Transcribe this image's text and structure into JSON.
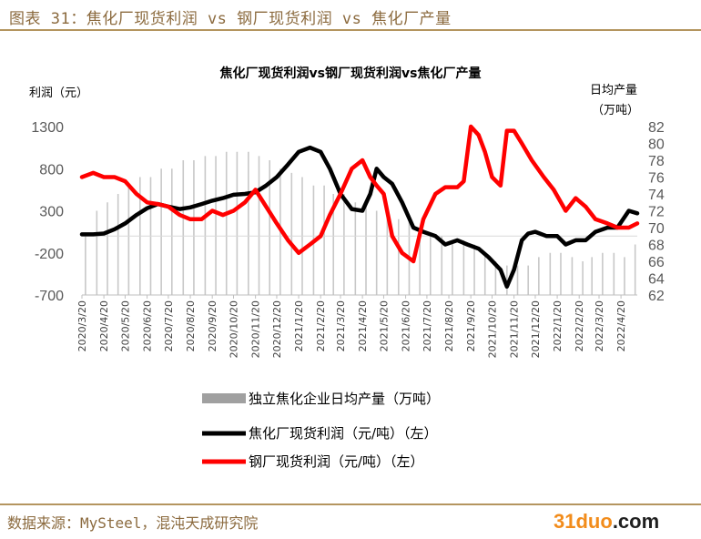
{
  "figure_caption": "图表 31：焦化厂现货利润 vs 钢厂现货利润 vs 焦化厂产量",
  "source": "数据来源：MySteel，混沌天成研究院",
  "logo": {
    "part1": "31",
    "part2": "duo",
    "part3": ".com"
  },
  "colors": {
    "coke": "#000000",
    "steel": "#ff0000",
    "bars": "#c8c8c8",
    "accent": "#b4955f"
  },
  "chart_data": {
    "type": "line",
    "title": "焦化厂现货利润vs钢厂现货利润vs焦化厂产量",
    "ylabel_left": "利润（元）",
    "ylabel_right": [
      "日均产量",
      "（万吨）"
    ],
    "ylim_left": [
      -700,
      1300
    ],
    "yticks_left": [
      "1300",
      "800",
      "300",
      "-200",
      "-700"
    ],
    "ylim_right": [
      62,
      82
    ],
    "yticks_right": [
      "82",
      "80",
      "78",
      "76",
      "74",
      "72",
      "70",
      "68",
      "66",
      "64",
      "62"
    ],
    "x_range": [
      "2020-03-20",
      "2022-05-13"
    ],
    "xticks": [
      "2020/3/20",
      "2020/4/20",
      "2020/5/20",
      "2020/6/20",
      "2020/7/20",
      "2020/8/20",
      "2020/9/20",
      "2020/10/20",
      "2020/11/20",
      "2020/12/20",
      "2021/1/20",
      "2021/2/20",
      "2021/3/20",
      "2021/4/20",
      "2021/5/20",
      "2021/6/20",
      "2021/7/20",
      "2021/8/20",
      "2021/9/20",
      "2021/10/20",
      "2021/11/20",
      "2021/12/20",
      "2022/1/20",
      "2022/2/20",
      "2022/3/20",
      "2022/4/20"
    ],
    "legend": [
      "独立焦化企业日均产量（万吨）",
      "焦化厂现货利润（元/吨）（左）",
      "钢厂现货利润（元/吨）（左）"
    ],
    "series": [
      {
        "name": "独立焦化企业日均产量（万吨）",
        "type": "bar",
        "axis": "right",
        "x": [
          "2020-03-25",
          "2020-04-10",
          "2020-04-25",
          "2020-05-10",
          "2020-05-25",
          "2020-06-10",
          "2020-06-25",
          "2020-07-10",
          "2020-07-25",
          "2020-08-10",
          "2020-08-25",
          "2020-09-10",
          "2020-09-25",
          "2020-10-10",
          "2020-10-25",
          "2020-11-10",
          "2020-11-25",
          "2020-12-10",
          "2020-12-25",
          "2021-01-10",
          "2021-01-25",
          "2021-02-10",
          "2021-02-25",
          "2021-03-10",
          "2021-03-25",
          "2021-04-10",
          "2021-04-25",
          "2021-05-10",
          "2021-05-25",
          "2021-06-10",
          "2021-06-25",
          "2021-07-10",
          "2021-07-25",
          "2021-08-10",
          "2021-08-25",
          "2021-09-10",
          "2021-09-25",
          "2021-10-10",
          "2021-10-25",
          "2021-11-10",
          "2021-11-25",
          "2021-12-10",
          "2021-12-25",
          "2022-01-10",
          "2022-01-25",
          "2022-02-10",
          "2022-02-25",
          "2022-03-10",
          "2022-03-25",
          "2022-04-10",
          "2022-04-25",
          "2022-05-10"
        ],
        "values": [
          69,
          72,
          73,
          74,
          75,
          76,
          76,
          77,
          77,
          78,
          78,
          78.5,
          78.5,
          79,
          79,
          79,
          78.5,
          78,
          77,
          76.5,
          76,
          75,
          75,
          74,
          74,
          73,
          73,
          72,
          72,
          71,
          71,
          70,
          69,
          69,
          68.5,
          68.5,
          68,
          67,
          66,
          65.5,
          65.5,
          65.5,
          66.5,
          67,
          67,
          66.5,
          66,
          66.5,
          67,
          67,
          66.5,
          68
        ]
      },
      {
        "name": "焦化厂现货利润（元/吨）（左）",
        "type": "line",
        "axis": "left",
        "x": [
          "2020-03-20",
          "2020-04-05",
          "2020-04-20",
          "2020-05-05",
          "2020-05-20",
          "2020-06-05",
          "2020-06-20",
          "2020-07-05",
          "2020-07-20",
          "2020-08-05",
          "2020-08-20",
          "2020-09-05",
          "2020-09-20",
          "2020-10-05",
          "2020-10-20",
          "2020-11-05",
          "2020-11-20",
          "2020-12-05",
          "2020-12-20",
          "2021-01-05",
          "2021-01-20",
          "2021-02-05",
          "2021-02-20",
          "2021-03-05",
          "2021-03-20",
          "2021-04-05",
          "2021-04-20",
          "2021-05-01",
          "2021-05-10",
          "2021-05-20",
          "2021-06-01",
          "2021-06-15",
          "2021-07-01",
          "2021-07-15",
          "2021-08-01",
          "2021-08-15",
          "2021-09-01",
          "2021-09-15",
          "2021-10-01",
          "2021-10-15",
          "2021-11-01",
          "2021-11-10",
          "2021-11-20",
          "2021-12-01",
          "2021-12-10",
          "2021-12-20",
          "2022-01-05",
          "2022-01-20",
          "2022-02-01",
          "2022-02-15",
          "2022-03-01",
          "2022-03-15",
          "2022-04-01",
          "2022-04-15",
          "2022-05-01",
          "2022-05-13"
        ],
        "values": [
          20,
          20,
          30,
          80,
          150,
          250,
          330,
          380,
          350,
          320,
          340,
          380,
          420,
          450,
          490,
          500,
          520,
          600,
          700,
          850,
          1000,
          1050,
          1000,
          800,
          500,
          320,
          300,
          500,
          800,
          700,
          620,
          400,
          100,
          50,
          0,
          -100,
          -50,
          -100,
          -150,
          -250,
          -400,
          -600,
          -400,
          -50,
          30,
          50,
          0,
          0,
          -100,
          -50,
          -50,
          50,
          100,
          100,
          300,
          270
        ]
      },
      {
        "name": "钢厂现货利润（元/吨）（左）",
        "type": "line",
        "axis": "left",
        "x": [
          "2020-03-20",
          "2020-04-05",
          "2020-04-20",
          "2020-05-05",
          "2020-05-20",
          "2020-06-05",
          "2020-06-20",
          "2020-07-05",
          "2020-07-20",
          "2020-08-05",
          "2020-08-20",
          "2020-09-05",
          "2020-09-20",
          "2020-10-05",
          "2020-10-20",
          "2020-11-05",
          "2020-11-20",
          "2020-12-05",
          "2020-12-20",
          "2021-01-05",
          "2021-01-20",
          "2021-02-05",
          "2021-02-20",
          "2021-03-05",
          "2021-03-20",
          "2021-04-05",
          "2021-04-20",
          "2021-05-01",
          "2021-05-10",
          "2021-05-20",
          "2021-06-01",
          "2021-06-15",
          "2021-07-01",
          "2021-07-15",
          "2021-08-01",
          "2021-08-15",
          "2021-09-01",
          "2021-09-10",
          "2021-09-20",
          "2021-10-01",
          "2021-10-10",
          "2021-10-20",
          "2021-11-01",
          "2021-11-10",
          "2021-11-20",
          "2021-12-01",
          "2021-12-15",
          "2022-01-01",
          "2022-01-15",
          "2022-02-01",
          "2022-02-15",
          "2022-03-01",
          "2022-03-15",
          "2022-04-01",
          "2022-04-15",
          "2022-05-01",
          "2022-05-13"
        ],
        "values": [
          700,
          750,
          700,
          700,
          650,
          500,
          400,
          380,
          350,
          250,
          200,
          200,
          300,
          250,
          300,
          400,
          550,
          350,
          150,
          -50,
          -200,
          -100,
          0,
          250,
          500,
          800,
          900,
          700,
          600,
          500,
          0,
          -200,
          -300,
          200,
          500,
          580,
          580,
          650,
          1300,
          1200,
          1000,
          700,
          600,
          1250,
          1250,
          1100,
          900,
          700,
          550,
          300,
          450,
          350,
          200,
          150,
          100,
          100,
          150
        ]
      }
    ]
  }
}
